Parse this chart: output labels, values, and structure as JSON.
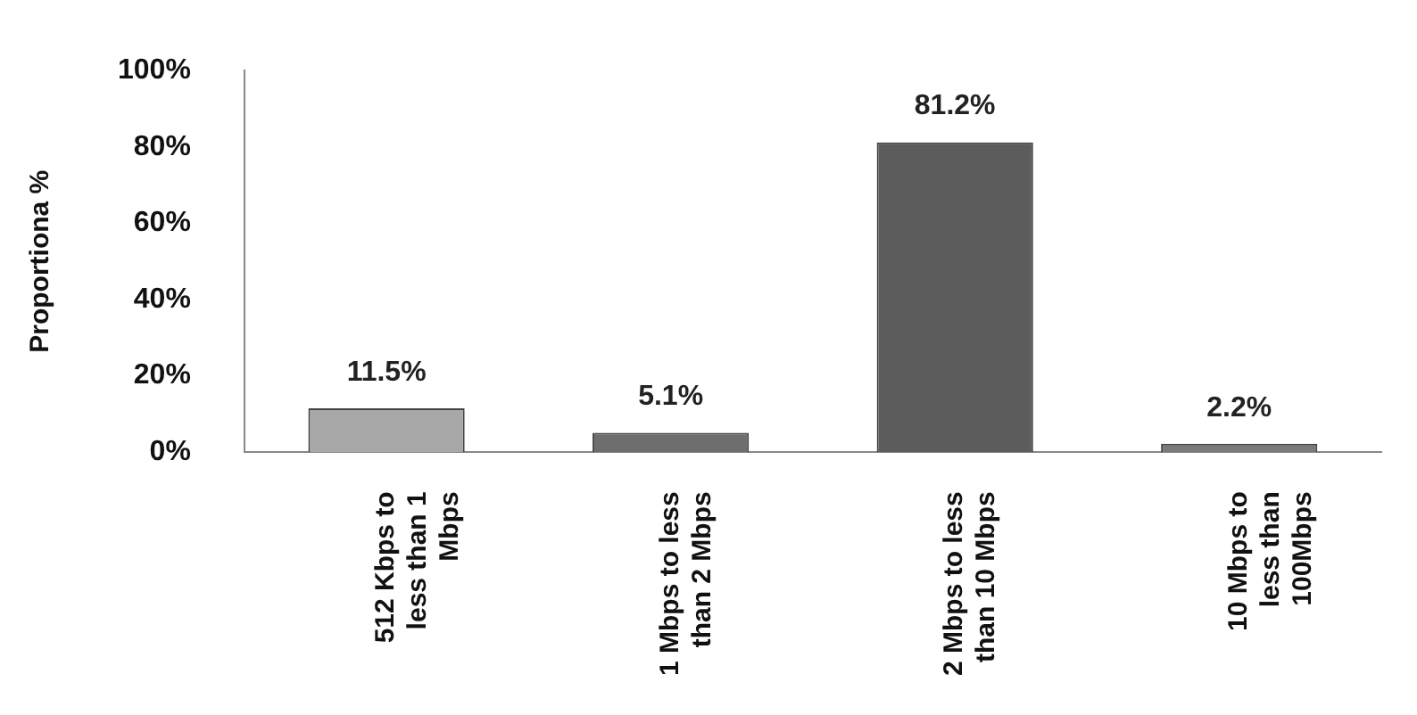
{
  "chart_data": {
    "type": "bar",
    "ylabel": "Proportiona %",
    "categories": [
      "512 Kbps to less than 1 Mbps",
      "1 Mbps to less than 2 Mbps",
      "2 Mbps to less than 10 Mbps",
      "10 Mbps to less than 100Mbps"
    ],
    "values": [
      11.5,
      5.1,
      81.2,
      2.2
    ],
    "value_labels": [
      "11.5%",
      "5.1%",
      "81.2%",
      "2.2%"
    ],
    "colors": [
      "#a8a8a8",
      "#6e6e6e",
      "#5c5c5c",
      "#7a7a7a"
    ],
    "ylim": [
      0,
      100
    ],
    "yticks": [
      {
        "value": 0,
        "label": "0%"
      },
      {
        "value": 20,
        "label": "20%"
      },
      {
        "value": 40,
        "label": "40%"
      },
      {
        "value": 60,
        "label": "60%"
      },
      {
        "value": 80,
        "label": "80%"
      },
      {
        "value": 100,
        "label": "100%"
      }
    ],
    "grid": false,
    "legend": false
  }
}
